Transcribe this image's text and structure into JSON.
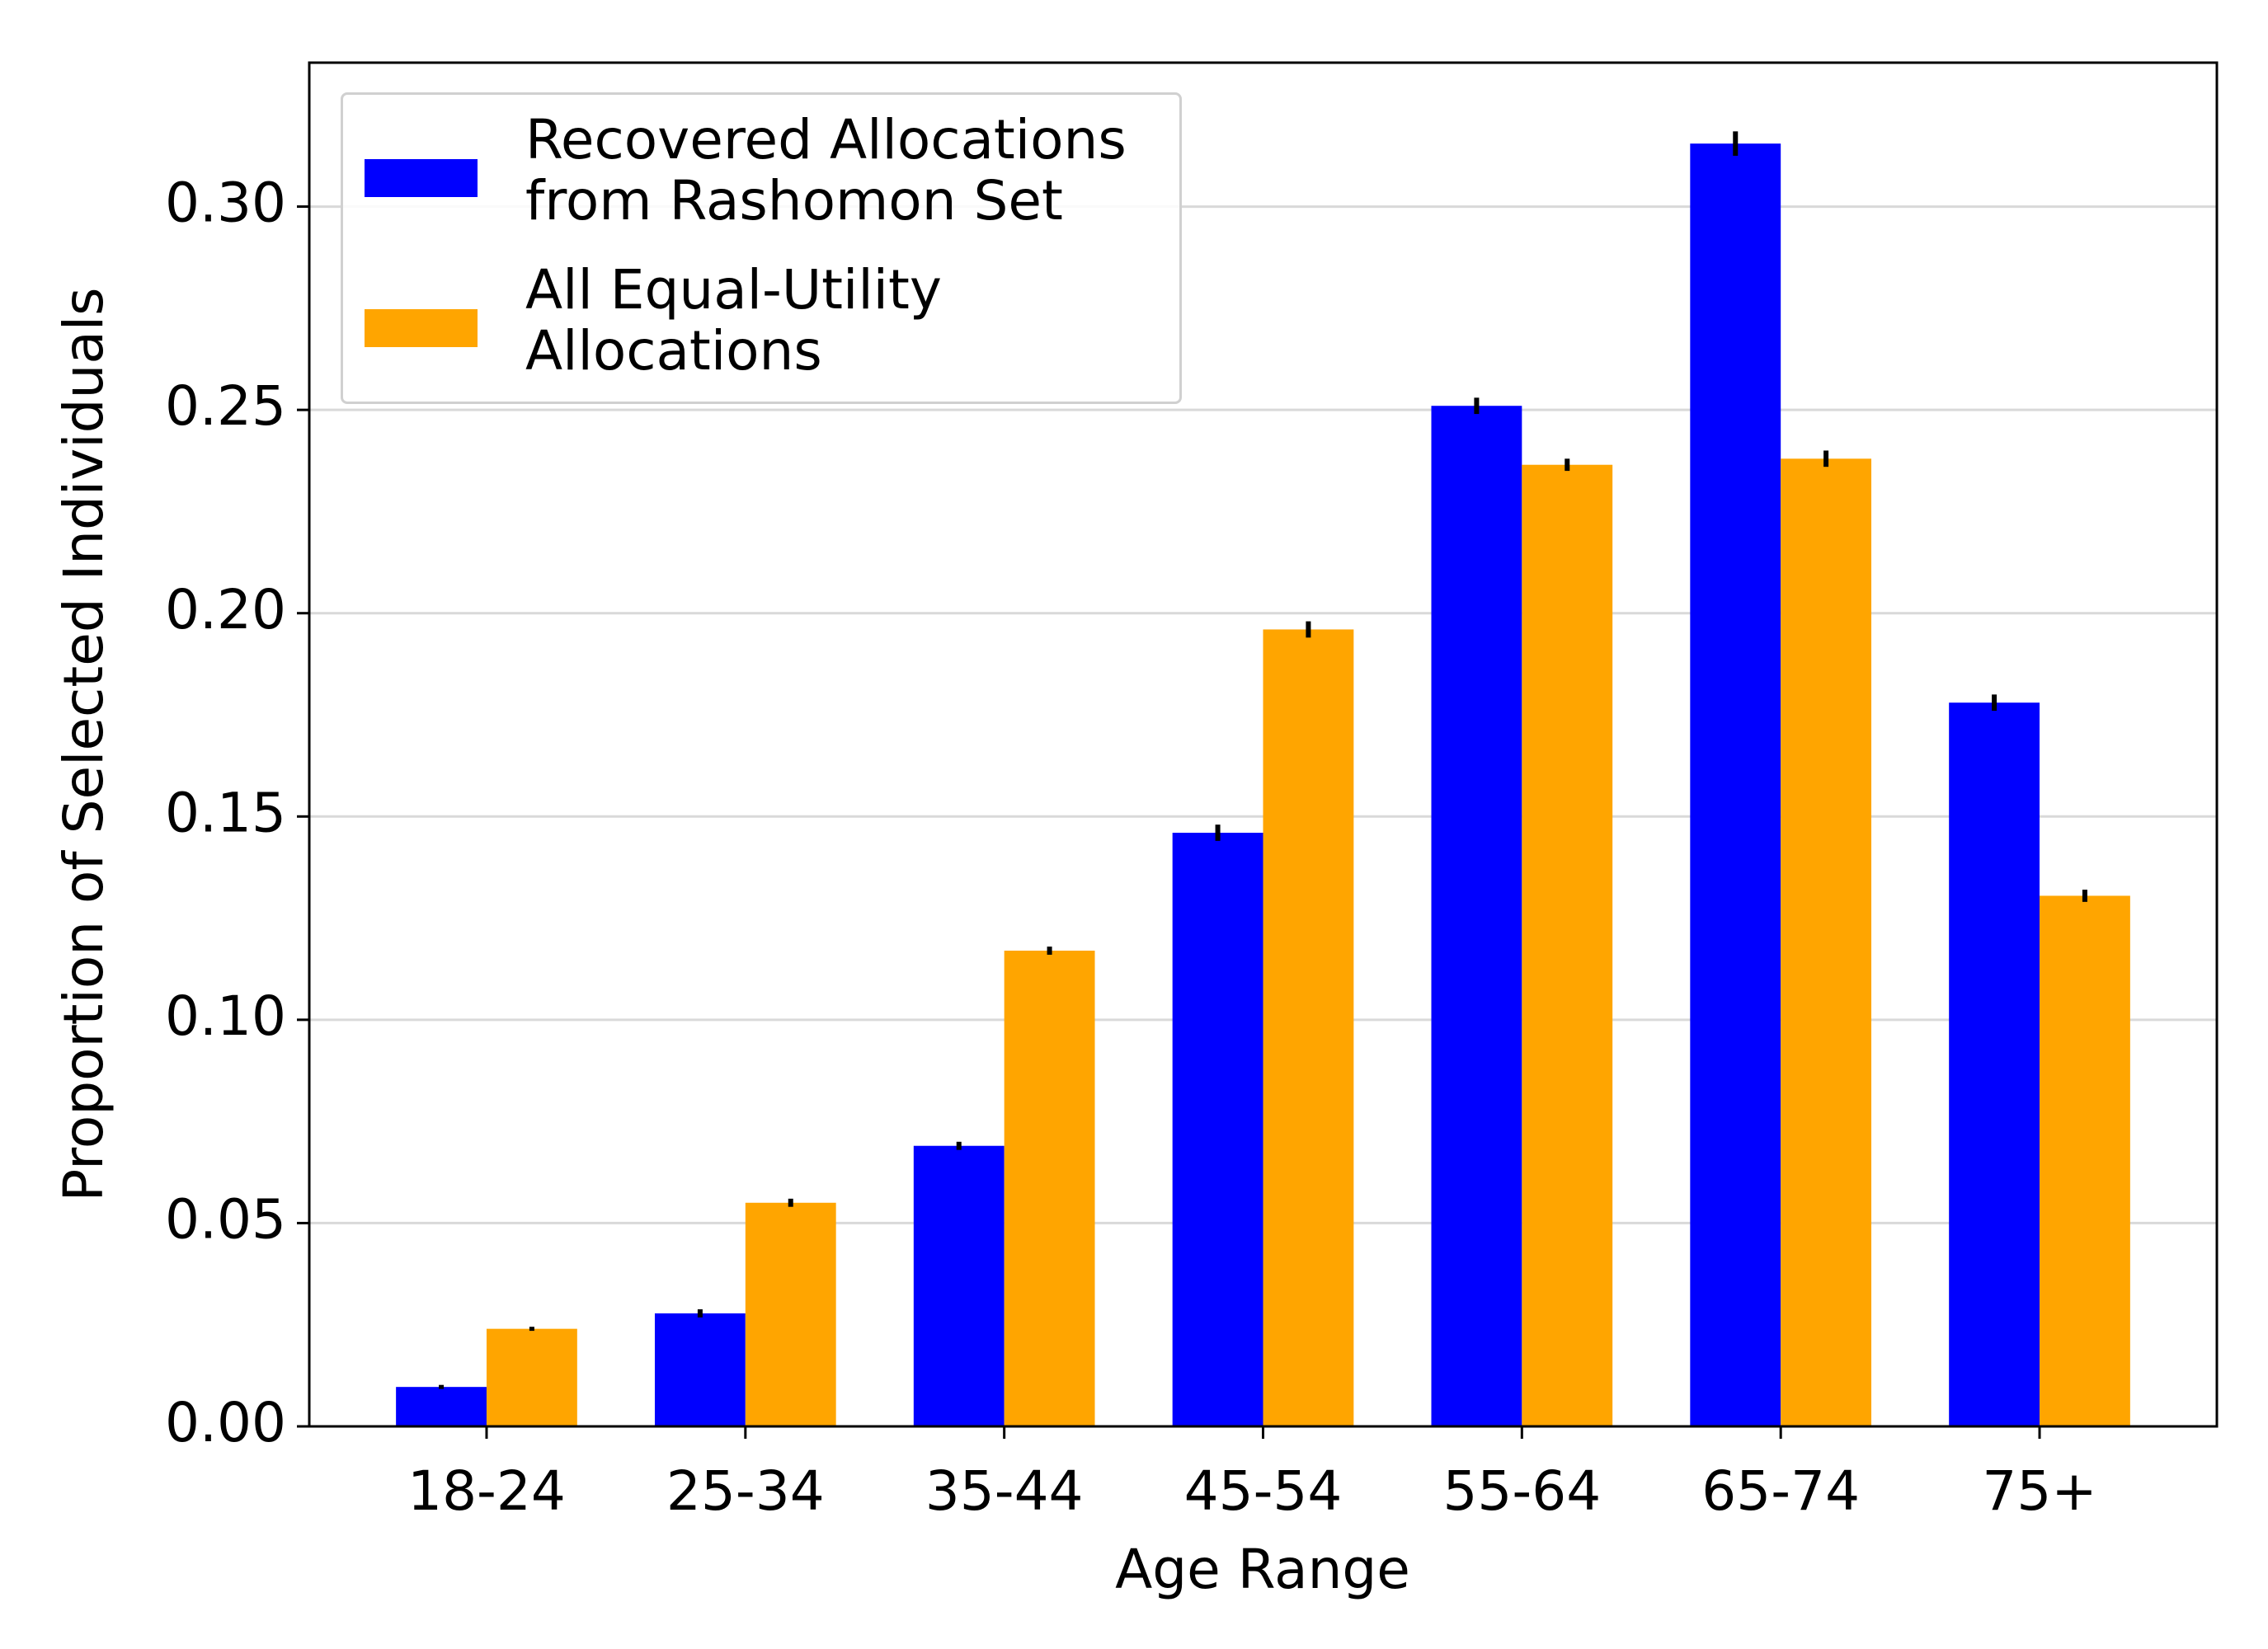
{
  "chart_data": {
    "type": "bar",
    "x_label": "Age Range",
    "y_label": "Proportion of Selected Individuals",
    "categories": [
      "18-24",
      "25-34",
      "35-44",
      "45-54",
      "55-64",
      "65-74",
      "75+"
    ],
    "series": [
      {
        "name": "Recovered Allocations from Rashomon Set",
        "color": "#0000ff",
        "values": [
          0.0097,
          0.0278,
          0.069,
          0.146,
          0.251,
          0.3155,
          0.178
        ],
        "errors": [
          0.0005,
          0.001,
          0.001,
          0.002,
          0.002,
          0.003,
          0.002
        ]
      },
      {
        "name": "All Equal-Utility Allocations",
        "color": "#ffa500",
        "values": [
          0.024,
          0.055,
          0.117,
          0.196,
          0.2365,
          0.238,
          0.1305
        ],
        "errors": [
          0.0005,
          0.001,
          0.001,
          0.002,
          0.0015,
          0.002,
          0.0015
        ]
      }
    ],
    "ylim": [
      0,
      0.3354
    ],
    "yticks": [
      {
        "value": 0,
        "label": "0.00"
      },
      {
        "value": 0.05,
        "label": "0.05"
      },
      {
        "value": 0.1,
        "label": "0.10"
      },
      {
        "value": 0.15,
        "label": "0.15"
      },
      {
        "value": 0.2,
        "label": "0.20"
      },
      {
        "value": 0.25,
        "label": "0.25"
      },
      {
        "value": 0.3,
        "label": "0.30"
      }
    ],
    "grid": true,
    "legend": "upper left"
  }
}
